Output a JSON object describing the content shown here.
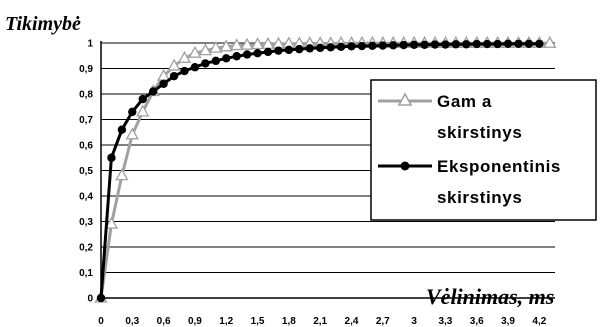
{
  "chart_data": {
    "type": "line",
    "title": "",
    "ylabel": "Tikimybė",
    "xlabel": "Vėlinimas, ms",
    "ylim": [
      0,
      1
    ],
    "xlim": [
      0,
      4.35
    ],
    "y_ticks": [
      "0",
      "0,1",
      "0,2",
      "0,3",
      "0,4",
      "0,5",
      "0,6",
      "0,7",
      "0,8",
      "0,9",
      "1"
    ],
    "x_ticks": [
      "0",
      "0,3",
      "0,6",
      "0,9",
      "1,2",
      "1,5",
      "1,8",
      "2,1",
      "2,4",
      "2,7",
      "3",
      "3,3",
      "3,6",
      "3,9",
      "4,2"
    ],
    "grid": "horizontal",
    "legend_position": "right",
    "series": [
      {
        "name": "Gama skirstinys",
        "marker": "triangle-open",
        "color": "#a0a0a0",
        "x": [
          0,
          0.1,
          0.2,
          0.3,
          0.4,
          0.5,
          0.6,
          0.7,
          0.8,
          0.9,
          1.0,
          1.1,
          1.2,
          1.3,
          1.4,
          1.5,
          1.6,
          1.7,
          1.8,
          1.9,
          2.0,
          2.1,
          2.2,
          2.3,
          2.4,
          2.5,
          2.6,
          2.7,
          2.8,
          2.9,
          3.0,
          3.1,
          3.2,
          3.3,
          3.4,
          3.5,
          3.6,
          3.7,
          3.8,
          3.9,
          4.0,
          4.1,
          4.2,
          4.3
        ],
        "values": [
          0,
          0.29,
          0.48,
          0.64,
          0.73,
          0.81,
          0.87,
          0.91,
          0.94,
          0.96,
          0.97,
          0.98,
          0.985,
          0.99,
          0.992,
          0.994,
          0.995,
          0.996,
          0.997,
          0.997,
          0.998,
          0.998,
          0.998,
          0.999,
          0.999,
          0.999,
          0.999,
          0.999,
          0.999,
          0.999,
          0.999,
          0.999,
          0.999,
          0.999,
          0.999,
          0.999,
          0.999,
          0.999,
          0.999,
          0.999,
          0.999,
          0.999,
          0.999,
          0.999
        ]
      },
      {
        "name": "Eksponentinis skirstinys",
        "marker": "circle-filled",
        "color": "#000000",
        "x": [
          0,
          0.1,
          0.2,
          0.3,
          0.4,
          0.5,
          0.6,
          0.7,
          0.8,
          0.9,
          1.0,
          1.1,
          1.2,
          1.3,
          1.4,
          1.5,
          1.6,
          1.7,
          1.8,
          1.9,
          2.0,
          2.1,
          2.2,
          2.3,
          2.4,
          2.5,
          2.6,
          2.7,
          2.8,
          2.9,
          3.0,
          3.1,
          3.2,
          3.3,
          3.4,
          3.5,
          3.6,
          3.7,
          3.8,
          3.9,
          4.0,
          4.1,
          4.2
        ],
        "values": [
          0,
          0.55,
          0.66,
          0.73,
          0.78,
          0.81,
          0.84,
          0.87,
          0.89,
          0.905,
          0.92,
          0.93,
          0.94,
          0.948,
          0.955,
          0.96,
          0.965,
          0.97,
          0.973,
          0.976,
          0.979,
          0.981,
          0.983,
          0.985,
          0.987,
          0.988,
          0.989,
          0.99,
          0.991,
          0.992,
          0.993,
          0.993,
          0.994,
          0.994,
          0.995,
          0.995,
          0.996,
          0.996,
          0.996,
          0.997,
          0.997,
          0.997,
          0.997
        ]
      }
    ]
  },
  "legend": {
    "items": [
      {
        "line1": "Gam a",
        "line2": "skirstinys"
      },
      {
        "line1": "Eksponentinis",
        "line2": "skirstinys"
      }
    ]
  }
}
